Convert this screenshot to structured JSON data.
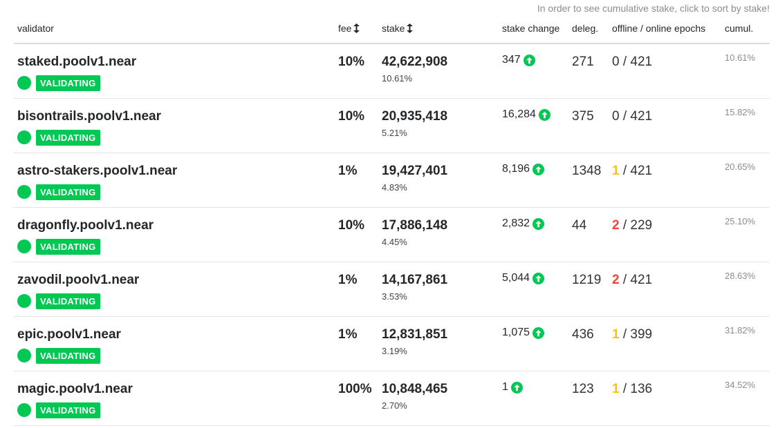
{
  "hint": "In order to see cumulative stake, click to sort by stake!",
  "headers": {
    "validator": "validator",
    "fee": "fee",
    "stake": "stake",
    "stake_change": "stake change",
    "deleg": "deleg.",
    "epochs": "offline / online epochs",
    "cumul": "cumul."
  },
  "colors": {
    "validating_green": "#00c853",
    "offline_yellow": "#ffc107",
    "offline_red": "#f44336"
  },
  "rows": [
    {
      "name": "staked.poolv1.near",
      "status": "VALIDATING",
      "fee": "10%",
      "stake": "42,622,908",
      "stake_pct": "10.61%",
      "stake_change": "347",
      "deleg": "271",
      "offline": "0",
      "offline_color": "none",
      "online": "/ 421",
      "cumul": "10.61%"
    },
    {
      "name": "bisontrails.poolv1.near",
      "status": "VALIDATING",
      "fee": "10%",
      "stake": "20,935,418",
      "stake_pct": "5.21%",
      "stake_change": "16,284",
      "deleg": "375",
      "offline": "0",
      "offline_color": "none",
      "online": "/ 421",
      "cumul": "15.82%"
    },
    {
      "name": "astro-stakers.poolv1.near",
      "status": "VALIDATING",
      "fee": "1%",
      "stake": "19,427,401",
      "stake_pct": "4.83%",
      "stake_change": "8,196",
      "deleg": "1348",
      "offline": "1",
      "offline_color": "yellow",
      "online": "/ 421",
      "cumul": "20.65%"
    },
    {
      "name": "dragonfly.poolv1.near",
      "status": "VALIDATING",
      "fee": "10%",
      "stake": "17,886,148",
      "stake_pct": "4.45%",
      "stake_change": "2,832",
      "deleg": "44",
      "offline": "2",
      "offline_color": "red",
      "online": "/ 229",
      "cumul": "25.10%"
    },
    {
      "name": "zavodil.poolv1.near",
      "status": "VALIDATING",
      "fee": "1%",
      "stake": "14,167,861",
      "stake_pct": "3.53%",
      "stake_change": "5,044",
      "deleg": "1219",
      "offline": "2",
      "offline_color": "red",
      "online": "/ 421",
      "cumul": "28.63%"
    },
    {
      "name": "epic.poolv1.near",
      "status": "VALIDATING",
      "fee": "1%",
      "stake": "12,831,851",
      "stake_pct": "3.19%",
      "stake_change": "1,075",
      "deleg": "436",
      "offline": "1",
      "offline_color": "yellow",
      "online": "/ 399",
      "cumul": "31.82%"
    },
    {
      "name": "magic.poolv1.near",
      "status": "VALIDATING",
      "fee": "100%",
      "stake": "10,848,465",
      "stake_pct": "2.70%",
      "stake_change": "1",
      "deleg": "123",
      "offline": "1",
      "offline_color": "yellow",
      "online": "/ 136",
      "cumul": "34.52%"
    }
  ]
}
